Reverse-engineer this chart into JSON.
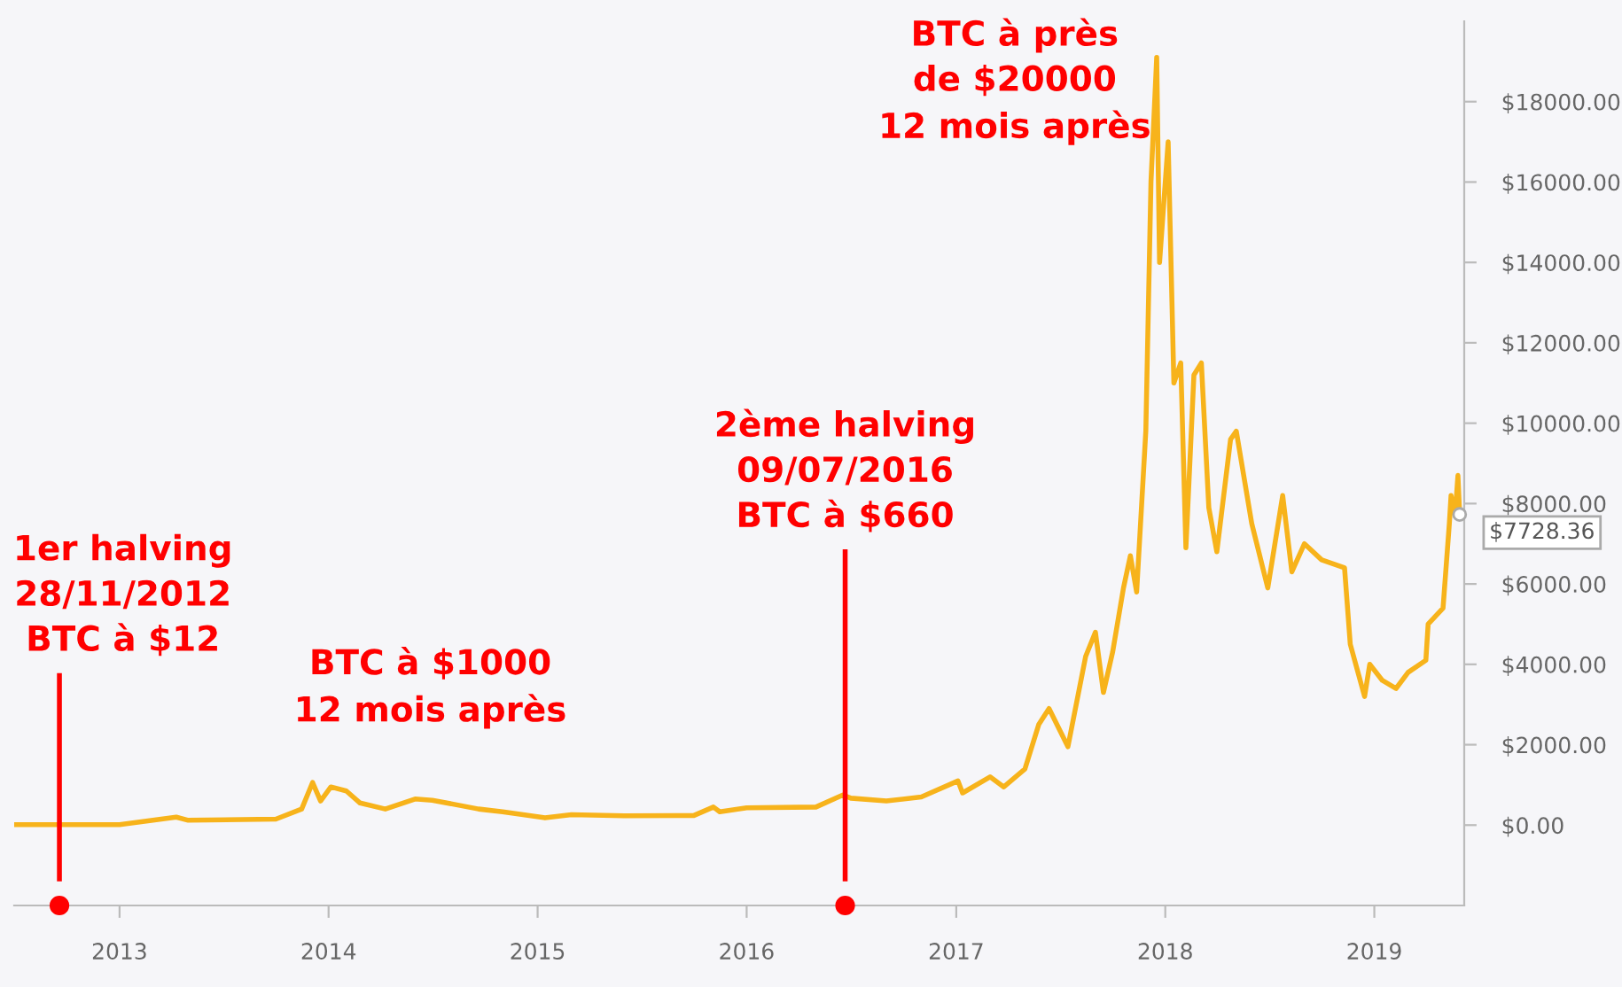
{
  "chart_data": {
    "type": "line",
    "x": [
      "2012-07-01",
      "2013-01-01",
      "2013-04-10",
      "2013-05-01",
      "2013-10-01",
      "2013-11-15",
      "2013-12-04",
      "2013-12-18",
      "2014-01-05",
      "2014-02-01",
      "2014-02-25",
      "2014-04-10",
      "2014-06-01",
      "2014-07-01",
      "2014-09-20",
      "2014-11-01",
      "2015-01-14",
      "2015-03-01",
      "2015-06-01",
      "2015-10-01",
      "2015-11-04",
      "2015-11-15",
      "2016-01-01",
      "2016-05-01",
      "2016-06-17",
      "2016-07-01",
      "2016-09-01",
      "2016-11-01",
      "2017-01-04",
      "2017-01-12",
      "2017-03-01",
      "2017-03-25",
      "2017-05-01",
      "2017-05-25",
      "2017-06-12",
      "2017-07-15",
      "2017-08-15",
      "2017-09-01",
      "2017-09-15",
      "2017-10-01",
      "2017-10-20",
      "2017-11-01",
      "2017-11-12",
      "2017-11-28",
      "2017-12-07",
      "2017-12-17",
      "2017-12-22",
      "2018-01-06",
      "2018-01-16",
      "2018-01-28",
      "2018-02-06",
      "2018-02-20",
      "2018-03-05",
      "2018-03-18",
      "2018-04-01",
      "2018-04-25",
      "2018-05-05",
      "2018-06-01",
      "2018-06-29",
      "2018-07-25",
      "2018-08-10",
      "2018-09-01",
      "2018-10-01",
      "2018-11-10",
      "2018-11-20",
      "2018-12-15",
      "2018-12-24",
      "2019-01-15",
      "2019-02-08",
      "2019-03-01",
      "2019-04-01",
      "2019-04-05",
      "2019-05-01",
      "2019-05-12",
      "2019-05-15",
      "2019-05-22",
      "2019-05-27",
      "2019-05-30"
    ],
    "series": [
      {
        "color": "#f7b31b",
        "values": [
          10,
          10,
          200,
          120,
          150,
          400,
          1060,
          600,
          950,
          850,
          550,
          400,
          650,
          620,
          400,
          330,
          180,
          260,
          230,
          240,
          450,
          330,
          430,
          450,
          750,
          670,
          600,
          700,
          1100,
          800,
          1200,
          950,
          1400,
          2500,
          2900,
          1950,
          4200,
          4800,
          3300,
          4300,
          5900,
          6700,
          5800,
          9800,
          16000,
          19100,
          14000,
          17000,
          11000,
          11500,
          6900,
          11200,
          11500,
          7900,
          6800,
          9600,
          9800,
          7500,
          5900,
          8200,
          6300,
          7000,
          6600,
          6400,
          4500,
          3200,
          4000,
          3600,
          3400,
          3800,
          4100,
          5000,
          5400,
          7500,
          8200,
          7700,
          8700,
          7728.36
        ]
      }
    ],
    "xlim": [
      "2012-07-01",
      "2019-06-07"
    ],
    "xticks": [
      {
        "value": "2013-01-01",
        "label": "2013"
      },
      {
        "value": "2014-01-01",
        "label": "2014"
      },
      {
        "value": "2015-01-01",
        "label": "2015"
      },
      {
        "value": "2016-01-01",
        "label": "2016"
      },
      {
        "value": "2017-01-01",
        "label": "2017"
      },
      {
        "value": "2018-01-01",
        "label": "2018"
      },
      {
        "value": "2019-01-01",
        "label": "2019"
      }
    ],
    "ylim": [
      -2000,
      20000
    ],
    "yticks": [
      {
        "value": 0,
        "label": "$0.00"
      },
      {
        "value": 2000,
        "label": "$2000.00"
      },
      {
        "value": 4000,
        "label": "$4000.00"
      },
      {
        "value": 6000,
        "label": "$6000.00"
      },
      {
        "value": 8000,
        "label": "$8000.00"
      },
      {
        "value": 10000,
        "label": "$10000.00"
      },
      {
        "value": 12000,
        "label": "$12000.00"
      },
      {
        "value": 14000,
        "label": "$14000.00"
      },
      {
        "value": 16000,
        "label": "$16000.00"
      },
      {
        "value": 18000,
        "label": "$18000.00"
      }
    ],
    "ref_lines": [
      {
        "axis": "x",
        "value": "2012-09-18",
        "label": "1er halving\n28/11/2012\nBTC à $12",
        "color": "#ff0000"
      },
      {
        "axis": "x",
        "value": "2016-06-21",
        "label": "2ème halving\n09/07/2016\nBTC à $660",
        "color": "#ff0000"
      }
    ],
    "annotations": [
      "BTC à $1000\n12 mois après",
      "BTC à près\nde $20000\n12 mois après",
      {
        "text": "$7728.36",
        "x": "2019-05-30",
        "y": 7728.36
      }
    ],
    "grid": false,
    "marker": "none",
    "line_style": "solid"
  }
}
